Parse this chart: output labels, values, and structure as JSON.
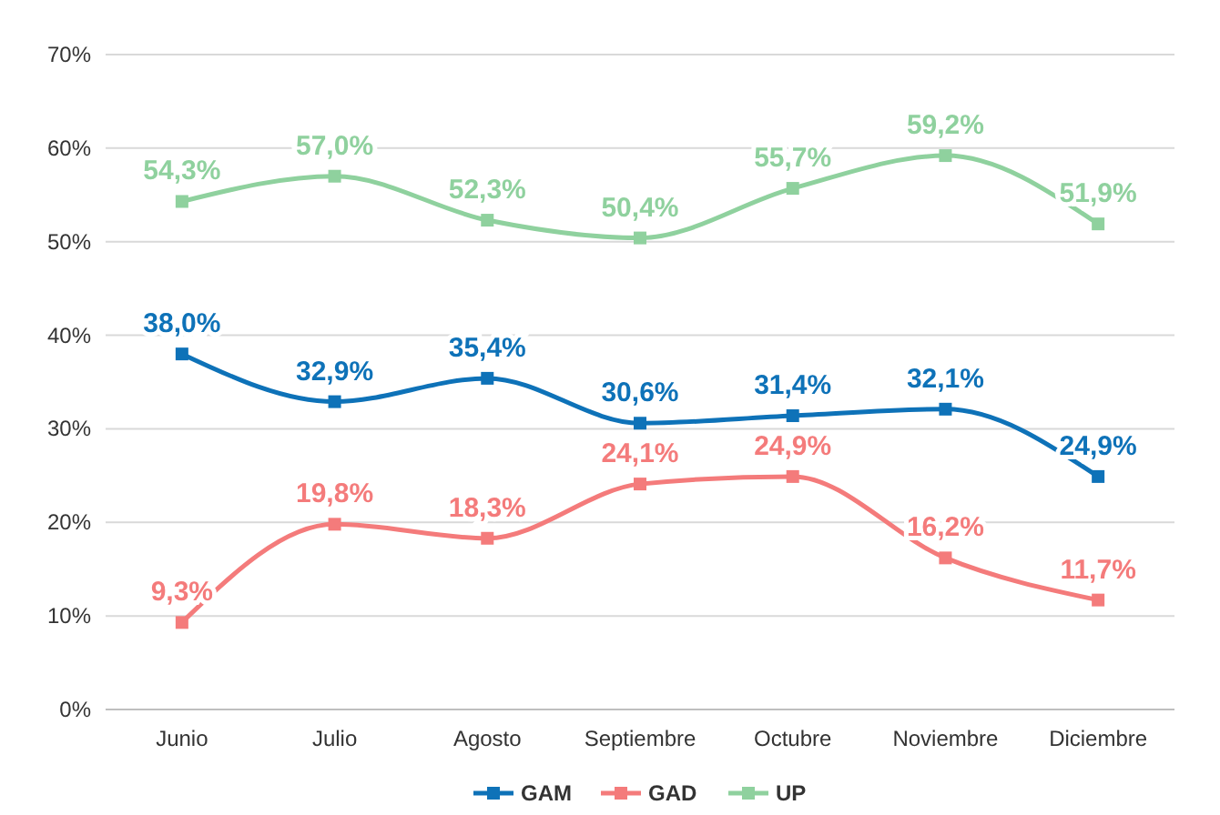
{
  "chart_data": {
    "type": "line",
    "categories": [
      "Junio",
      "Julio",
      "Agosto",
      "Septiembre",
      "Octubre",
      "Noviembre",
      "Diciembre"
    ],
    "series": [
      {
        "name": "GAM",
        "color": "#0e72b8",
        "values": [
          38.0,
          32.9,
          35.4,
          30.6,
          31.4,
          32.1,
          24.9
        ],
        "value_labels": [
          "38,0%",
          "32,9%",
          "35,4%",
          "30,6%",
          "31,4%",
          "32,1%",
          "24,9%"
        ]
      },
      {
        "name": "GAD",
        "color": "#f47b7b",
        "values": [
          9.3,
          19.8,
          18.3,
          24.1,
          24.9,
          16.2,
          11.7
        ],
        "value_labels": [
          "9,3%",
          "19,8%",
          "18,3%",
          "24,1%",
          "24,9%",
          "16,2%",
          "11,7%"
        ]
      },
      {
        "name": "UP",
        "color": "#8fd19e",
        "values": [
          54.3,
          57.0,
          52.3,
          50.4,
          55.7,
          59.2,
          51.9
        ],
        "value_labels": [
          "54,3%",
          "57,0%",
          "52,3%",
          "50,4%",
          "55,7%",
          "59,2%",
          "51,9%"
        ]
      }
    ],
    "ylim": [
      0,
      70
    ],
    "yticks": [
      {
        "value": 0,
        "label": "0%"
      },
      {
        "value": 10,
        "label": "10%"
      },
      {
        "value": 20,
        "label": "20%"
      },
      {
        "value": 30,
        "label": "30%"
      },
      {
        "value": 40,
        "label": "40%"
      },
      {
        "value": 50,
        "label": "50%"
      },
      {
        "value": 60,
        "label": "60%"
      },
      {
        "value": 70,
        "label": "70%"
      }
    ],
    "grid": "y",
    "legend": "bottom",
    "marker": "square",
    "line_style": "solid"
  }
}
